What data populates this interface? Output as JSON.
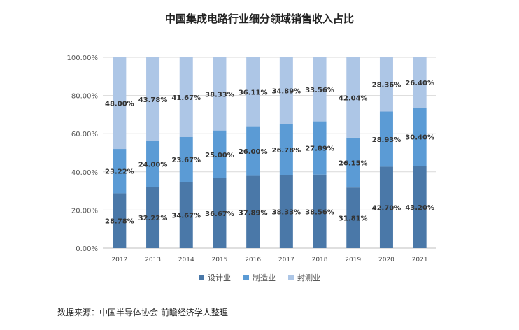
{
  "title": "中国集成电路行业细分领域销售收入占比",
  "source": "数据来源：中国半导体协会 前瞻经济学人整理",
  "colors": {
    "design": "#4a78a8",
    "manufacture": "#5b9bd5",
    "package": "#adc6e6",
    "grid": "#d9d9d9"
  },
  "chart_data": {
    "type": "bar",
    "stacked": true,
    "categories": [
      "2012",
      "2013",
      "2014",
      "2015",
      "2016",
      "2017",
      "2018",
      "2019",
      "2020",
      "2021"
    ],
    "series": [
      {
        "name": "设计业",
        "values": [
          28.78,
          32.22,
          34.67,
          36.67,
          37.89,
          38.33,
          38.56,
          31.81,
          42.7,
          43.2
        ],
        "labels": [
          "28.78%",
          "32.22%",
          "34.67%",
          "36.67%",
          "37.89%",
          "38.33%",
          "38.56%",
          "31.81%",
          "42.70%",
          "43.20%"
        ]
      },
      {
        "name": "制造业",
        "values": [
          23.22,
          24.0,
          23.67,
          25.0,
          26.0,
          26.78,
          27.89,
          26.15,
          28.93,
          30.4
        ],
        "labels": [
          "23.22%",
          "24.00%",
          "23.67%",
          "25.00%",
          "26.00%",
          "26.78%",
          "27.89%",
          "26.15%",
          "28.93%",
          "30.40%"
        ]
      },
      {
        "name": "封测业",
        "values": [
          48.0,
          43.78,
          41.67,
          38.33,
          36.11,
          34.89,
          33.56,
          42.04,
          28.36,
          26.4
        ],
        "labels": [
          "48.00%",
          "43.78%",
          "41.67%",
          "38.33%",
          "36.11%",
          "34.89%",
          "33.56%",
          "42.04%",
          "28.36%",
          "26.40%"
        ]
      }
    ],
    "yticks": [
      "0.00%",
      "20.00%",
      "40.00%",
      "60.00%",
      "80.00%",
      "100.00%"
    ],
    "ylim": [
      0,
      100
    ],
    "grid": true,
    "legend": "bottom"
  }
}
